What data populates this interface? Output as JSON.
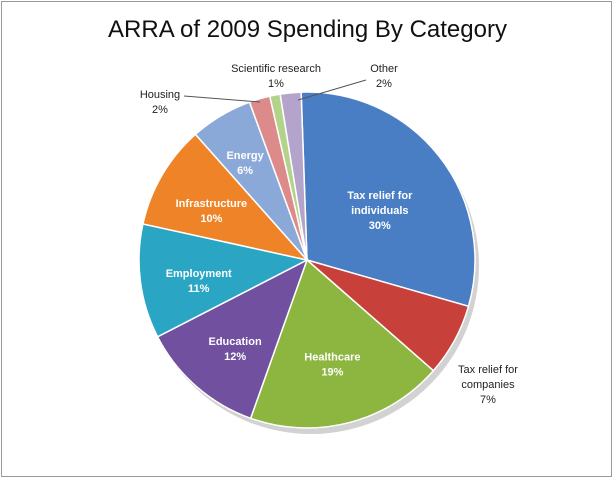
{
  "chart_data": {
    "type": "pie",
    "title": "ARRA of 2009 Spending By Category",
    "slices": [
      {
        "label": "Tax relief for individuals",
        "value": 30,
        "value_label": "30%",
        "color": "#4a7ec4"
      },
      {
        "label": "Tax relief for companies",
        "value": 7,
        "value_label": "7%",
        "color": "#c8403a"
      },
      {
        "label": "Healthcare",
        "value": 19,
        "value_label": "19%",
        "color": "#8cb640"
      },
      {
        "label": "Education",
        "value": 12,
        "value_label": "12%",
        "color": "#7150a0"
      },
      {
        "label": "Employment",
        "value": 11,
        "value_label": "11%",
        "color": "#2aa6c4"
      },
      {
        "label": "Infrastructure",
        "value": 10,
        "value_label": "10%",
        "color": "#ee8427"
      },
      {
        "label": "Energy",
        "value": 6,
        "value_label": "6%",
        "color": "#8aa9d8"
      },
      {
        "label": "Housing",
        "value": 2,
        "value_label": "2%",
        "color": "#dd8a8a"
      },
      {
        "label": "Scientific research",
        "value": 1,
        "value_label": "1%",
        "color": "#b4d38a"
      },
      {
        "label": "Other",
        "value": 2,
        "value_label": "2%",
        "color": "#b4a4cc"
      }
    ],
    "legend": "none"
  }
}
